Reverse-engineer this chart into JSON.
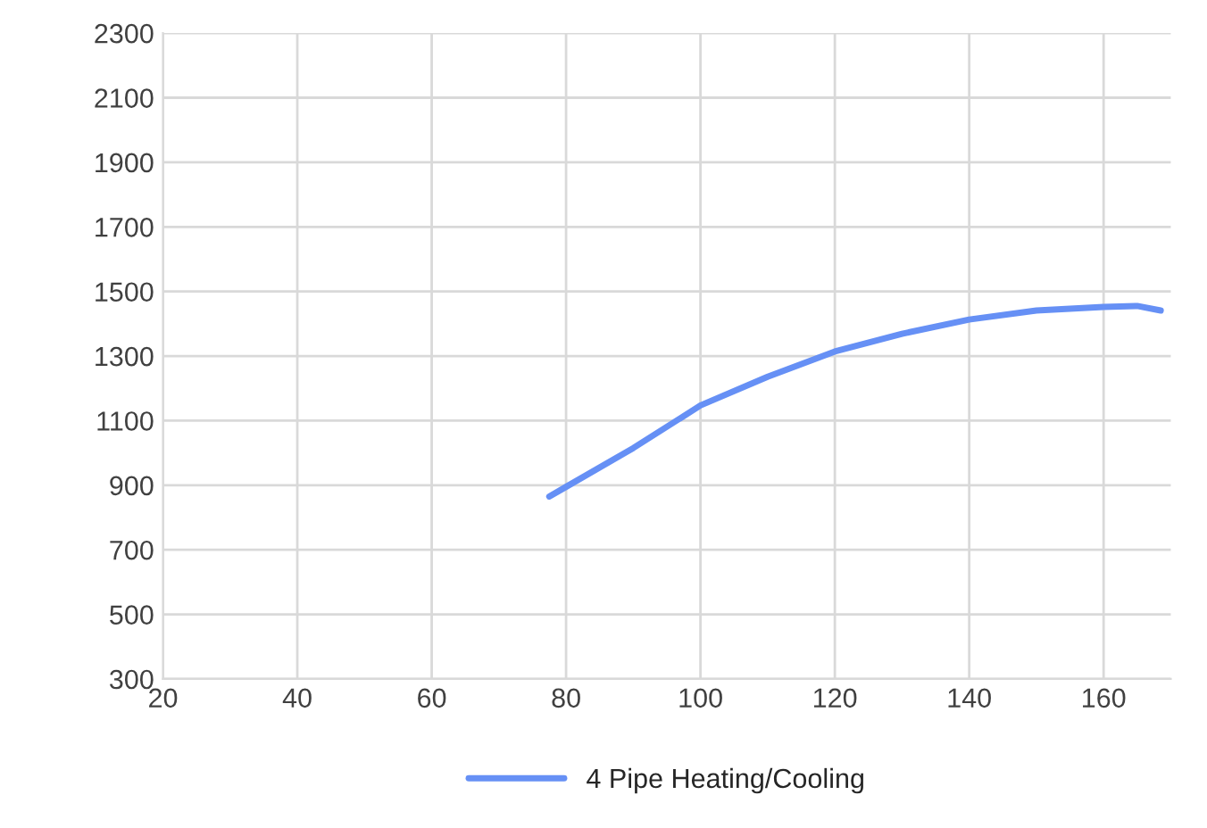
{
  "chart_data": {
    "type": "line",
    "x": [
      77.5,
      80,
      90,
      100,
      110,
      120,
      130,
      140,
      150,
      160,
      165,
      168.5
    ],
    "series": [
      {
        "name": "4 Pipe Heating/Cooling",
        "color": "#6690f5",
        "values": [
          865,
          895,
          1015,
          1147,
          1236,
          1314,
          1369,
          1413,
          1441,
          1452,
          1455,
          1441
        ]
      }
    ],
    "xlim": [
      20,
      170
    ],
    "xticks": [
      20,
      40,
      60,
      80,
      100,
      120,
      140,
      160
    ],
    "ylim": [
      300,
      2300
    ],
    "yticks": [
      300,
      500,
      700,
      900,
      1100,
      1300,
      1500,
      1700,
      1900,
      2100,
      2300
    ],
    "grid": true,
    "legend": "bottom",
    "marker": "none",
    "line_style": "solid"
  }
}
